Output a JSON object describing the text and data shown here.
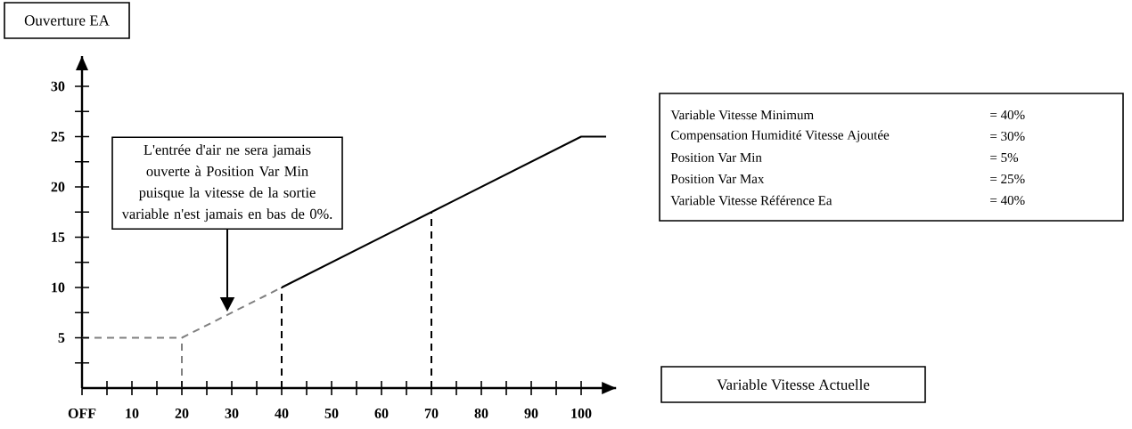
{
  "chart_data": {
    "type": "line",
    "ylabel": "Ouverture EA",
    "xlim": [
      0,
      107
    ],
    "ylim": [
      0,
      33
    ],
    "xticks": [
      {
        "value": 0,
        "label": "OFF"
      },
      {
        "value": 5,
        "label": null
      },
      10,
      {
        "value": 15,
        "label": null
      },
      20,
      {
        "value": 25,
        "label": null
      },
      30,
      {
        "value": 35,
        "label": null
      },
      40,
      {
        "value": 45,
        "label": null
      },
      50,
      {
        "value": 55,
        "label": null
      },
      60,
      {
        "value": 65,
        "label": null
      },
      70,
      {
        "value": 75,
        "label": null
      },
      80,
      {
        "value": 85,
        "label": null
      },
      90,
      {
        "value": 95,
        "label": null
      },
      100
    ],
    "yticks": [
      {
        "value": 2.5,
        "label": null
      },
      5,
      {
        "value": 7.5,
        "label": null
      },
      10,
      {
        "value": 12.5,
        "label": null
      },
      15,
      {
        "value": 17.5,
        "label": null
      },
      20,
      {
        "value": 22.5,
        "label": null
      },
      25,
      {
        "value": 27.5,
        "label": null
      },
      30
    ],
    "marker": "none",
    "series": [
      {
        "color": "#808080",
        "line_style": "dashed",
        "x": [
          0,
          20,
          40
        ],
        "values": [
          5,
          5,
          10
        ]
      },
      {
        "color": "#000000",
        "line_style": "solid",
        "x": [
          40,
          70,
          100,
          105
        ],
        "values": [
          10,
          17.5,
          25,
          25
        ]
      },
      {
        "color": "#808080",
        "line_style": "dashed",
        "x": [
          20,
          20
        ],
        "values": [
          0,
          5
        ]
      },
      {
        "color": "#000000",
        "line_style": "dashed",
        "x": [
          40,
          40
        ],
        "values": [
          0,
          10
        ]
      },
      {
        "color": "#000000",
        "line_style": "dashed",
        "x": [
          70,
          70
        ],
        "values": [
          0,
          17.5
        ]
      }
    ],
    "annotations": [
      "L'entrée d'air ne sera jamais ouverte à Position Var Min puisque la vitesse de la sortie variable n'est jamais en bas de 0%.",
      "Variable Vitesse Minimum",
      "= 40%",
      "Compensation Humidité Vitesse Ajoutée",
      "= 30%",
      "Position Var Min",
      "= 5%",
      "Position Var Max",
      "= 25%",
      "Variable Vitesse Référence Ea",
      "= 40%",
      "Variable Vitesse Actuelle"
    ]
  }
}
